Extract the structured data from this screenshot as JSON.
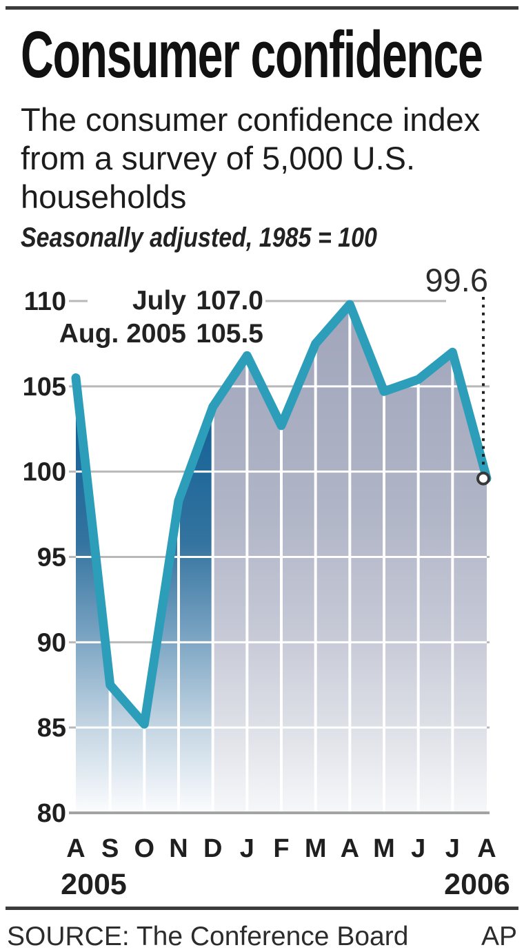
{
  "masthead": {
    "title": "Consumer confidence",
    "subtitle_lines": [
      "The consumer confidence index",
      "from a survey of 5,000 U.S.",
      "households"
    ],
    "note": "Seasonally adjusted, 1985 = 100"
  },
  "chart_data": {
    "type": "area",
    "title": "Consumer confidence",
    "x_categories": [
      "A",
      "S",
      "O",
      "N",
      "D",
      "J",
      "F",
      "M",
      "A",
      "M",
      "J",
      "J",
      "A"
    ],
    "series": [
      {
        "name": "Consumer confidence index",
        "values": [
          105.5,
          87.5,
          85.2,
          98.3,
          103.8,
          106.8,
          102.7,
          107.5,
          109.8,
          104.7,
          105.4,
          107.0,
          99.6
        ]
      }
    ],
    "ylim": [
      80,
      110
    ],
    "y_ticks": [
      110,
      105,
      100,
      95,
      90,
      85,
      80
    ],
    "grid": true,
    "x_periods": {
      "start_year": "2005",
      "end_year": "2006"
    },
    "annotations": {
      "endpoint": "99.6",
      "callouts": [
        {
          "label": "July",
          "value": "107.0"
        },
        {
          "label": "Aug. 2005",
          "value": "105.5"
        }
      ]
    },
    "colors": {
      "line": "#2D9EBA",
      "blue_area_gradient": [
        "#0A5C94",
        "#33739F",
        "#7BA4C3",
        "#C2D4E2",
        "#FBFCFE"
      ],
      "gray_area_gradient": [
        "#A0A5BB",
        "#AFB4C6",
        "#C6C9D6",
        "#E0E2E9",
        "#F6F7F9"
      ],
      "gridline": "#B8B8B8",
      "baseline": "#A3A3A3",
      "marker_stroke": "#383838",
      "marker_fill": "#FFFFFF",
      "dotted_line": "#222222"
    }
  },
  "footer": {
    "source": "SOURCE: The Conference Board",
    "credit": "AP"
  }
}
